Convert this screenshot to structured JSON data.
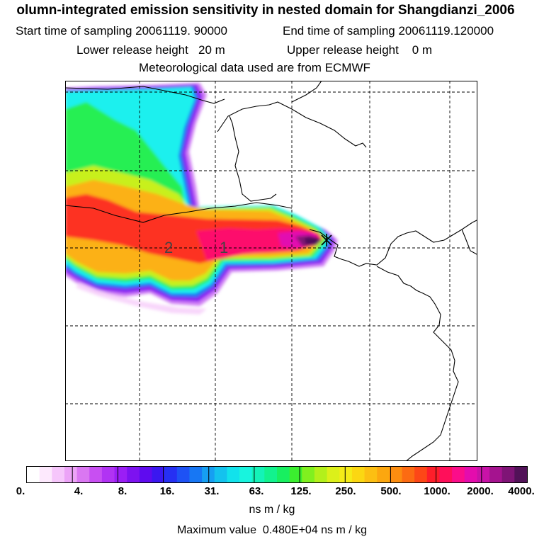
{
  "header": {
    "title": "olumn-integrated emission sensitivity in nested domain for Shangdianzi_2006",
    "start_label": "Start time of sampling 20061119. 90000",
    "end_label": "End time of sampling 20061119.120000",
    "lower_label": "Lower release height   20 m",
    "upper_label": "Upper release height    0 m",
    "met_label": "Meteorological data used are from ECMWF"
  },
  "map": {
    "contour_labels": [
      "2",
      "1"
    ],
    "station_marker": "+",
    "colors": {
      "coast": "#000000",
      "grid": "#000000",
      "frame": "#000000"
    }
  },
  "colorbar": {
    "tick_labels": [
      "0.",
      "4.",
      "8.",
      "16.",
      "31.",
      "63.",
      "125.",
      "250.",
      "500.",
      "1000.",
      "2000.",
      "4000."
    ],
    "colors": [
      "#ffffff",
      "#fde9fd",
      "#f6c6fb",
      "#eca3f7",
      "#da77f2",
      "#c84ff2",
      "#b133f3",
      "#9b1ef5",
      "#7d12f0",
      "#5f0bef",
      "#3b17f0",
      "#2630f3",
      "#1e52f5",
      "#1777f4",
      "#169ff2",
      "#14c2ee",
      "#12e2ec",
      "#18f4de",
      "#14f3b8",
      "#12f28e",
      "#18ef60",
      "#3bef2f",
      "#80f01f",
      "#b3f01b",
      "#dcf01a",
      "#f4ec18",
      "#fbd712",
      "#fcbf12",
      "#fca70f",
      "#fc8d10",
      "#fc6b12",
      "#fd4717",
      "#fe1e2a",
      "#ff0f5a",
      "#fb0d8a",
      "#e40cad",
      "#c812a7",
      "#a5138f",
      "#7f1476",
      "#521258"
    ],
    "unit": "ns m / kg",
    "max_value": "Maximum value  0.480E+04 ns m / kg"
  }
}
